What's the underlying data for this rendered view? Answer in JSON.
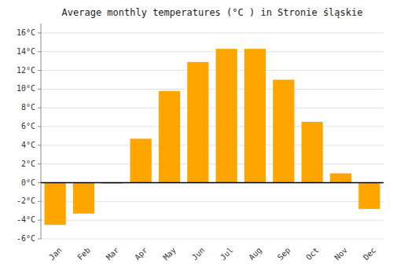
{
  "chart_data": {
    "type": "bar",
    "title": "Average monthly temperatures (°C ) in Stronie śląskie",
    "categories": [
      "Jan",
      "Feb",
      "Mar",
      "Apr",
      "May",
      "Jun",
      "Jul",
      "Aug",
      "Sep",
      "Oct",
      "Nov",
      "Dec"
    ],
    "values": [
      -4.5,
      -3.3,
      -0.1,
      4.7,
      9.8,
      12.9,
      14.3,
      14.3,
      11.0,
      6.5,
      1.0,
      -2.8
    ],
    "color": "#FFA500",
    "ylim": [
      -6,
      17
    ],
    "yticks": [
      {
        "value": -6,
        "label": "-6°C"
      },
      {
        "value": -4,
        "label": "-4°C"
      },
      {
        "value": -2,
        "label": "-2°C"
      },
      {
        "value": 0,
        "label": "0°C"
      },
      {
        "value": 2,
        "label": "2°C"
      },
      {
        "value": 4,
        "label": "4°C"
      },
      {
        "value": 6,
        "label": "6°C"
      },
      {
        "value": 8,
        "label": "8°C"
      },
      {
        "value": 10,
        "label": "10°C"
      },
      {
        "value": 12,
        "label": "12°C"
      },
      {
        "value": 14,
        "label": "14°C"
      },
      {
        "value": 16,
        "label": "16°C"
      }
    ],
    "grid": true
  }
}
